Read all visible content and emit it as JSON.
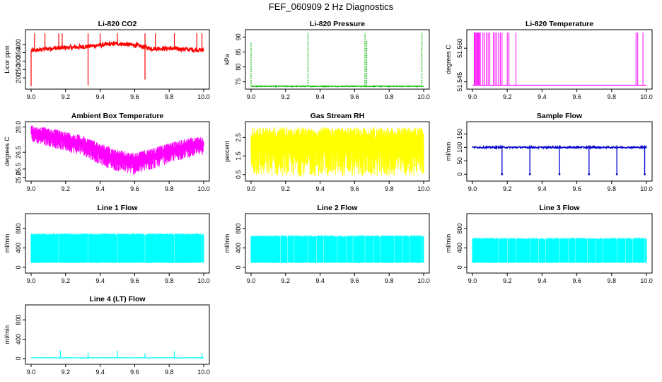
{
  "title": "FEF_060909  2 Hz Diagnostics",
  "panels": [
    {
      "key": "co2",
      "title": "Li-820 CO2",
      "ylabel": "Licor ppm",
      "color": "#ff0000",
      "xlim": [
        9.0,
        10.0
      ],
      "ylim": [
        150,
        470
      ],
      "xticks": [
        "9.0",
        "9.2",
        "9.4",
        "9.6",
        "9.8",
        "10.0"
      ],
      "yticks": [
        "200",
        "250",
        "300",
        "350",
        "400"
      ],
      "series": {
        "type": "noisy-spikes",
        "x": [
          9.0,
          9.1,
          9.2,
          9.3,
          9.4,
          9.5,
          9.6,
          9.7,
          9.8,
          9.9,
          10.0
        ],
        "base": [
          360,
          375,
          380,
          385,
          395,
          405,
          395,
          375,
          375,
          370,
          365
        ],
        "noise": 12,
        "spikes_up": [
          9.02,
          9.08,
          9.16,
          9.18,
          9.33,
          9.4,
          9.5,
          9.66,
          9.72,
          9.83,
          9.96,
          9.99
        ],
        "spike_up_to": 465,
        "spikes_down": [
          9.0,
          9.33,
          9.66
        ],
        "spike_down_to": [
          150,
          155,
          190
        ]
      }
    },
    {
      "key": "pressure",
      "title": "Li-820 Pressure",
      "ylabel": "kPa",
      "color": "#00b400",
      "xlim": [
        9.0,
        10.0
      ],
      "ylim": [
        73.5,
        91.5
      ],
      "xticks": [
        "9.0",
        "9.2",
        "9.4",
        "9.6",
        "9.8",
        "10.0"
      ],
      "yticks": [
        "75",
        "80",
        "85",
        "90"
      ],
      "series": {
        "type": "baseline-spikes",
        "base": 73.5,
        "noise": 0.15,
        "spikes": [
          [
            9.0,
            88
          ],
          [
            9.33,
            91.5
          ],
          [
            9.66,
            91.5
          ],
          [
            9.67,
            89
          ],
          [
            9.99,
            91.5
          ]
        ]
      }
    },
    {
      "key": "temperature",
      "title": "Li-820 Temperature",
      "ylabel": "degrees C",
      "color": "#ff00ff",
      "xlim": [
        9.0,
        10.0
      ],
      "ylim": [
        51.543,
        51.567
      ],
      "xticks": [
        "9.0",
        "9.2",
        "9.4",
        "9.6",
        "9.8",
        "10.0"
      ],
      "yticks": [
        "51.545",
        "51.560"
      ],
      "series": {
        "type": "switching",
        "base": 51.5435,
        "high": 51.567,
        "switches": [
          9.01,
          9.015,
          9.02,
          9.025,
          9.03,
          9.035,
          9.04,
          9.045,
          9.06,
          9.07,
          9.08,
          9.09,
          9.1,
          9.12,
          9.13,
          9.14,
          9.15,
          9.16,
          9.17,
          9.2,
          9.21,
          9.25,
          9.94,
          9.95,
          9.98
        ]
      }
    },
    {
      "key": "ambient",
      "title": "Ambient Box Temperature",
      "ylabel": "degrees C",
      "color": "#ff00ff",
      "xlim": [
        9.0,
        10.0
      ],
      "ylim": [
        24.95,
        28.15
      ],
      "xticks": [
        "9.0",
        "9.2",
        "9.4",
        "9.6",
        "9.8",
        "10.0"
      ],
      "yticks": [
        "25.0",
        "25.5",
        "26.5",
        "28.0"
      ],
      "series": {
        "type": "band",
        "x": [
          9.0,
          9.1,
          9.2,
          9.3,
          9.4,
          9.5,
          9.6,
          9.7,
          9.8,
          9.9,
          10.0
        ],
        "upper": [
          28.1,
          27.95,
          27.75,
          27.5,
          27.05,
          26.65,
          26.45,
          26.75,
          27.05,
          27.35,
          27.45
        ],
        "lower": [
          27.1,
          26.85,
          26.55,
          26.3,
          25.75,
          25.35,
          25.15,
          25.45,
          25.85,
          26.15,
          26.35
        ]
      }
    },
    {
      "key": "rh",
      "title": "Gas Stream RH",
      "ylabel": "percent",
      "color": "#ffff00",
      "xlim": [
        9.0,
        10.0
      ],
      "ylim": [
        0.3,
        3.2
      ],
      "xticks": [
        "9.0",
        "9.2",
        "9.4",
        "9.6",
        "9.8",
        "10.0"
      ],
      "yticks": [
        "0.5",
        "1.5",
        "2.5"
      ],
      "series": {
        "type": "band-random",
        "upper": 3.05,
        "lower": 0.4
      }
    },
    {
      "key": "sampleflow",
      "title": "Sample Flow",
      "ylabel": "ml/min",
      "color": "#0000cc",
      "xlim": [
        9.0,
        10.0
      ],
      "ylim": [
        -15,
        185
      ],
      "xticks": [
        "9.0",
        "9.2",
        "9.4",
        "9.6",
        "9.8",
        "10.0"
      ],
      "yticks": [
        "0",
        "50",
        "100",
        "150"
      ],
      "series": {
        "type": "level-dips",
        "base": 100,
        "noise": 3,
        "dips": [
          [
            9.17,
            0
          ],
          [
            9.33,
            0
          ],
          [
            9.5,
            0
          ],
          [
            9.67,
            0
          ],
          [
            9.83,
            0
          ],
          [
            9.99,
            0
          ]
        ],
        "spike_up_to": 108
      }
    },
    {
      "key": "line1",
      "title": "Line 1 Flow",
      "ylabel": "ml/min",
      "color": "#00ffff",
      "xlim": [
        9.0,
        10.0
      ],
      "ylim": [
        -60,
        1050
      ],
      "xticks": [
        "9.0",
        "9.2",
        "9.4",
        "9.6",
        "9.8",
        "10.0"
      ],
      "yticks": [
        "0",
        "400",
        "800"
      ],
      "series": {
        "type": "flow-band",
        "upper": 700,
        "lower": 90,
        "gaps": [
          9.16,
          9.33,
          9.5,
          9.66,
          9.83,
          9.99
        ]
      }
    },
    {
      "key": "line2",
      "title": "Line 2 Flow",
      "ylabel": "ml/min",
      "color": "#00ffff",
      "xlim": [
        9.0,
        10.0
      ],
      "ylim": [
        -60,
        1050
      ],
      "xticks": [
        "9.0",
        "9.2",
        "9.4",
        "9.6",
        "9.8",
        "10.0"
      ],
      "yticks": [
        "0",
        "400",
        "800"
      ],
      "series": {
        "type": "flow-band",
        "upper": 660,
        "lower": 90,
        "gaps": [
          9.17,
          9.21,
          9.25,
          9.33,
          9.38,
          9.42,
          9.5,
          9.55,
          9.59,
          9.66,
          9.71,
          9.75,
          9.83,
          9.88,
          9.92,
          9.99
        ]
      }
    },
    {
      "key": "line3",
      "title": "Line 3 Flow",
      "ylabel": "ml/min",
      "color": "#00ffff",
      "xlim": [
        9.0,
        10.0
      ],
      "ylim": [
        -60,
        1050
      ],
      "xticks": [
        "9.0",
        "9.2",
        "9.4",
        "9.6",
        "9.8",
        "10.0"
      ],
      "yticks": [
        "0",
        "400",
        "800"
      ],
      "series": {
        "type": "flow-band",
        "upper": 610,
        "lower": 90,
        "gaps": [
          9.15,
          9.2,
          9.25,
          9.33,
          9.38,
          9.42,
          9.5,
          9.55,
          9.59,
          9.66,
          9.71,
          9.75,
          9.83,
          9.88,
          9.92,
          9.99
        ]
      }
    },
    {
      "key": "line4",
      "title": "Line 4 (LT) Flow",
      "ylabel": "ml/min",
      "color": "#00ffff",
      "xlim": [
        9.0,
        10.0
      ],
      "ylim": [
        -60,
        1050
      ],
      "xticks": [
        "9.0",
        "9.2",
        "9.4",
        "9.6",
        "9.8",
        "10.0"
      ],
      "yticks": [
        "0",
        "400",
        "800"
      ],
      "series": {
        "type": "baseline-spikes",
        "base": 15,
        "noise": 4,
        "spikes": [
          [
            9.17,
            170
          ],
          [
            9.33,
            120
          ],
          [
            9.5,
            160
          ],
          [
            9.66,
            110
          ],
          [
            9.83,
            150
          ],
          [
            9.99,
            110
          ]
        ]
      }
    }
  ],
  "chart_data": [
    {
      "type": "line",
      "title": "Li-820 CO2",
      "xlabel": "",
      "ylabel": "Licor ppm",
      "xlim": [
        9.0,
        10.0
      ],
      "ylim": [
        150,
        470
      ],
      "x": [
        9.0,
        9.1,
        9.2,
        9.3,
        9.4,
        9.5,
        9.6,
        9.7,
        9.8,
        9.9,
        10.0
      ],
      "values": [
        360,
        375,
        380,
        385,
        395,
        405,
        395,
        375,
        375,
        370,
        365
      ]
    },
    {
      "type": "line",
      "title": "Li-820 Pressure",
      "xlabel": "",
      "ylabel": "kPa",
      "xlim": [
        9.0,
        10.0
      ],
      "ylim": [
        73.5,
        91.5
      ],
      "x": [
        9.0,
        9.33,
        9.66,
        9.99
      ],
      "values": [
        88,
        91.5,
        91.5,
        91.5
      ],
      "baseline": 73.5
    },
    {
      "type": "line",
      "title": "Li-820 Temperature",
      "xlabel": "",
      "ylabel": "degrees C",
      "xlim": [
        9.0,
        10.0
      ],
      "ylim": [
        51.543,
        51.567
      ],
      "baseline": 51.5435
    },
    {
      "type": "line",
      "title": "Ambient Box Temperature",
      "xlabel": "",
      "ylabel": "degrees C",
      "xlim": [
        9.0,
        10.0
      ],
      "ylim": [
        24.95,
        28.15
      ],
      "x": [
        9.0,
        9.1,
        9.2,
        9.3,
        9.4,
        9.5,
        9.6,
        9.7,
        9.8,
        9.9,
        10.0
      ],
      "upper": [
        28.1,
        27.95,
        27.75,
        27.5,
        27.05,
        26.65,
        26.45,
        26.75,
        27.05,
        27.35,
        27.45
      ],
      "lower": [
        27.1,
        26.85,
        26.55,
        26.3,
        25.75,
        25.35,
        25.15,
        25.45,
        25.85,
        26.15,
        26.35
      ]
    },
    {
      "type": "line",
      "title": "Gas Stream RH",
      "xlabel": "",
      "ylabel": "percent",
      "xlim": [
        9.0,
        10.0
      ],
      "ylim": [
        0.3,
        3.2
      ],
      "upper": 3.05,
      "lower": 0.4
    },
    {
      "type": "line",
      "title": "Sample Flow",
      "xlabel": "",
      "ylabel": "ml/min",
      "xlim": [
        9.0,
        10.0
      ],
      "ylim": [
        -15,
        185
      ],
      "baseline": 100,
      "dips_x": [
        9.17,
        9.33,
        9.5,
        9.67,
        9.83,
        9.99
      ]
    },
    {
      "type": "line",
      "title": "Line 1 Flow",
      "xlabel": "",
      "ylabel": "ml/min",
      "xlim": [
        9.0,
        10.0
      ],
      "ylim": [
        -60,
        1050
      ],
      "upper": 700,
      "lower": 90
    },
    {
      "type": "line",
      "title": "Line 2 Flow",
      "xlabel": "",
      "ylabel": "ml/min",
      "xlim": [
        9.0,
        10.0
      ],
      "ylim": [
        -60,
        1050
      ],
      "upper": 660,
      "lower": 90
    },
    {
      "type": "line",
      "title": "Line 3 Flow",
      "xlabel": "",
      "ylabel": "ml/min",
      "xlim": [
        9.0,
        10.0
      ],
      "ylim": [
        -60,
        1050
      ],
      "upper": 610,
      "lower": 90
    },
    {
      "type": "line",
      "title": "Line 4 (LT) Flow",
      "xlabel": "",
      "ylabel": "ml/min",
      "xlim": [
        9.0,
        10.0
      ],
      "ylim": [
        -60,
        1050
      ],
      "baseline": 15,
      "x": [
        9.17,
        9.33,
        9.5,
        9.66,
        9.83,
        9.99
      ],
      "values": [
        170,
        120,
        160,
        110,
        150,
        110
      ]
    }
  ]
}
